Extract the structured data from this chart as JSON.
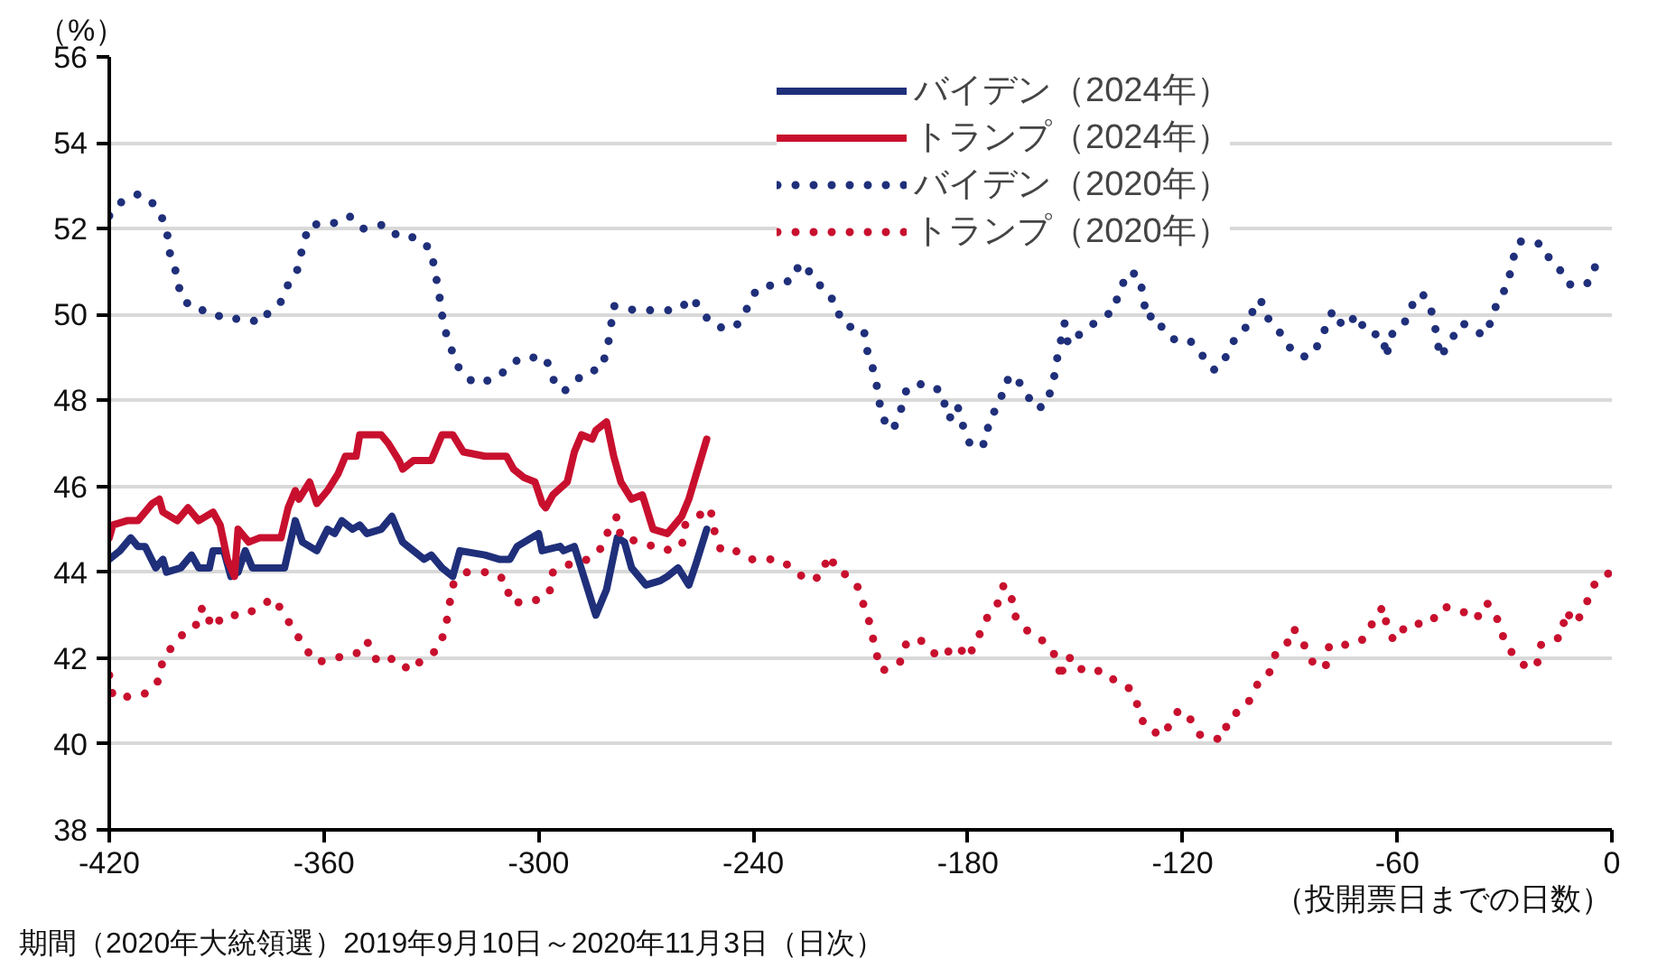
{
  "chart_data": {
    "type": "line",
    "ylabel": "（%）",
    "xlabel": "（投開票日までの日数）",
    "annotations": [
      "期間（2020年大統領選）2019年9月10日～2020年11月3日（日次）"
    ],
    "xlim": [
      -420,
      0
    ],
    "ylim": [
      38,
      56
    ],
    "xticks": [
      -420,
      -360,
      -300,
      -240,
      -180,
      -120,
      -60,
      0
    ],
    "yticks": [
      38,
      40,
      42,
      44,
      46,
      48,
      50,
      52,
      54,
      56
    ],
    "grid": "y",
    "legend": "top",
    "marker": "none",
    "series": [
      {
        "name": "バイデン（2024年）",
        "color": "#1f2f7a",
        "line_style": "solid",
        "x": [
          -420,
          -417,
          -414,
          -412,
          -410,
          -407,
          -405,
          -404,
          -400,
          -397,
          -395,
          -392,
          -391,
          -388,
          -386,
          -384,
          -382,
          -380,
          -371,
          -368,
          -366,
          -362,
          -359,
          -357,
          -355,
          -352,
          -350,
          -348,
          -344,
          -341,
          -338,
          -335,
          -332,
          -330,
          -327,
          -324,
          -322,
          -315,
          -311,
          -308,
          -306,
          -300,
          -299,
          -294,
          -293,
          -290,
          -284,
          -281,
          -278,
          -276,
          -274,
          -270,
          -266,
          -264,
          -261,
          -258,
          -256,
          -253
        ],
        "values": [
          44.3,
          44.5,
          44.8,
          44.6,
          44.6,
          44.1,
          44.3,
          44.0,
          44.1,
          44.4,
          44.1,
          44.1,
          44.5,
          44.5,
          43.9,
          44.0,
          44.5,
          44.1,
          44.1,
          45.2,
          44.7,
          44.5,
          45.0,
          44.9,
          45.2,
          45.0,
          45.1,
          44.9,
          45.0,
          45.3,
          44.7,
          44.5,
          44.3,
          44.4,
          44.1,
          43.9,
          44.5,
          44.4,
          44.3,
          44.3,
          44.6,
          44.9,
          44.5,
          44.6,
          44.5,
          44.6,
          43.0,
          43.6,
          44.8,
          44.7,
          44.1,
          43.7,
          43.8,
          43.9,
          44.1,
          43.7,
          44.2,
          45.0
        ]
      },
      {
        "name": "トランプ（2024年）",
        "color": "#c8102e",
        "line_style": "solid",
        "x": [
          -420,
          -419,
          -415,
          -412,
          -408,
          -406,
          -405,
          -401,
          -398,
          -395,
          -391,
          -389,
          -387,
          -385,
          -384,
          -381,
          -378,
          -372,
          -370,
          -368,
          -367,
          -364,
          -362,
          -359,
          -356,
          -354,
          -351,
          -350,
          -344,
          -342,
          -339,
          -338,
          -335,
          -330,
          -327,
          -324,
          -321,
          -315,
          -309,
          -307,
          -304,
          -301,
          -299,
          -298,
          -296,
          -292,
          -290,
          -288,
          -285,
          -284,
          -281,
          -279,
          -277,
          -274,
          -271,
          -268,
          -264,
          -260,
          -258,
          -253
        ],
        "values": [
          44.8,
          45.1,
          45.2,
          45.2,
          45.6,
          45.7,
          45.4,
          45.2,
          45.5,
          45.2,
          45.4,
          45.1,
          44.3,
          43.9,
          45.0,
          44.7,
          44.8,
          44.8,
          45.5,
          45.9,
          45.7,
          46.1,
          45.6,
          45.9,
          46.3,
          46.7,
          46.7,
          47.2,
          47.2,
          47.0,
          46.6,
          46.4,
          46.6,
          46.6,
          47.2,
          47.2,
          46.8,
          46.7,
          46.7,
          46.4,
          46.2,
          46.1,
          45.6,
          45.5,
          45.8,
          46.1,
          46.8,
          47.2,
          47.1,
          47.3,
          47.5,
          46.7,
          46.1,
          45.7,
          45.8,
          45.0,
          44.9,
          45.3,
          45.7,
          47.1
        ]
      },
      {
        "name": "バイデン（2020年）",
        "color": "#1f2f7a",
        "line_style": "dotted",
        "x": [
          -420,
          -417,
          -412,
          -409,
          -406,
          -404,
          -403,
          -401,
          -400,
          -396,
          -392,
          -388,
          -381,
          -378,
          -376,
          -372,
          -370,
          -367,
          -366,
          -364,
          -358,
          -353,
          -349,
          -343,
          -339,
          -334,
          -330,
          -329,
          -328,
          -327,
          -326,
          -324,
          -322,
          -318,
          -312,
          -308,
          -305,
          -298,
          -296,
          -293,
          -289,
          -286,
          -283,
          -281,
          -280,
          -279,
          -273,
          -267,
          -261,
          -257,
          -254,
          -250,
          -245,
          -242,
          -239,
          -234,
          -229,
          -227,
          -223,
          -220,
          -217,
          -216,
          -215,
          -212,
          -209,
          -208,
          -206,
          -205,
          -204,
          -201,
          -199,
          -197,
          -192,
          -187,
          -186,
          -185,
          -183,
          -181,
          -179,
          -175,
          -174,
          -171,
          -170,
          -167,
          -164,
          -161,
          -158,
          -156,
          -155,
          -154,
          -153,
          -152,
          -148,
          -143,
          -139,
          -138,
          -135,
          -132,
          -131,
          -130,
          -128,
          -125,
          -122,
          -118,
          -115,
          -111,
          -108,
          -105,
          -101,
          -100,
          -98,
          -96,
          -92,
          -89,
          -85,
          -82,
          -80,
          -78,
          -75,
          -71,
          -69,
          -64,
          -63,
          -62,
          -58,
          -56,
          -53,
          -50,
          -49,
          -48,
          -45,
          -42,
          -39,
          -36,
          -34,
          -32,
          -29,
          -28,
          -26,
          -22,
          -19,
          -17,
          -14,
          -12,
          -7,
          -5,
          -2
        ],
        "values": [
          52.3,
          52.6,
          52.8,
          52.7,
          52.4,
          52.0,
          51.4,
          50.9,
          50.4,
          50.1,
          50.1,
          49.9,
          49.9,
          49.8,
          50.0,
          50.3,
          50.7,
          51.1,
          51.6,
          52.1,
          52.1,
          52.3,
          52.0,
          52.1,
          51.8,
          51.8,
          51.5,
          51.0,
          50.6,
          50.0,
          49.6,
          49.1,
          48.7,
          48.4,
          48.5,
          48.8,
          49.0,
          49.0,
          48.5,
          48.2,
          48.5,
          48.7,
          48.7,
          49.1,
          49.6,
          50.2,
          50.1,
          50.1,
          50.1,
          50.4,
          50.0,
          49.7,
          49.7,
          50.1,
          50.6,
          50.7,
          50.8,
          51.2,
          50.9,
          50.5,
          50.3,
          50.0,
          50.0,
          49.6,
          49.6,
          49.1,
          48.6,
          48.1,
          47.6,
          47.3,
          47.7,
          48.3,
          48.4,
          48.2,
          47.6,
          47.6,
          47.9,
          47.3,
          46.9,
          47.0,
          47.6,
          47.9,
          48.4,
          48.6,
          48.2,
          47.8,
          47.9,
          48.5,
          49.0,
          49.4,
          49.8,
          49.3,
          49.6,
          49.9,
          50.1,
          50.5,
          51.0,
          50.9,
          50.4,
          49.9,
          50.0,
          49.6,
          49.4,
          49.4,
          49.1,
          48.7,
          49.0,
          49.5,
          49.8,
          50.3,
          50.3,
          49.9,
          49.5,
          49.1,
          49.0,
          49.3,
          49.7,
          50.1,
          49.7,
          50.0,
          49.6,
          49.5,
          49.0,
          49.5,
          49.8,
          50.2,
          50.5,
          50.0,
          49.5,
          49.0,
          49.4,
          49.8,
          49.7,
          49.5,
          49.8,
          50.3,
          50.7,
          51.2,
          51.7,
          51.7,
          51.6,
          51.2,
          51.0,
          50.7,
          50.7,
          51.1,
          51.1
        ]
      },
      {
        "name": "トランプ（2020年）",
        "color": "#c8102e",
        "line_style": "dotted",
        "x": [
          -420,
          -419,
          -413,
          -409,
          -406,
          -405,
          -401,
          -398,
          -395,
          -394,
          -391,
          -388,
          -382,
          -378,
          -374,
          -371,
          -368,
          -365,
          -362,
          -357,
          -351,
          -348,
          -345,
          -340,
          -336,
          -332,
          -328,
          -326,
          -325,
          -324,
          -320,
          -313,
          -309,
          -308,
          -302,
          -297,
          -296,
          -291,
          -286,
          -282,
          -280,
          -278,
          -277,
          -271,
          -265,
          -260,
          -259,
          -252,
          -251,
          -249,
          -245,
          -241,
          -238,
          -233,
          -229,
          -225,
          -221,
          -219,
          -216,
          -215,
          -211,
          -209,
          -207,
          -206,
          -204,
          -199,
          -197,
          -193,
          -188,
          -183,
          -180,
          -177,
          -175,
          -172,
          -170,
          -168,
          -167,
          -163,
          -159,
          -155,
          -154,
          -153,
          -150,
          -148,
          -142,
          -138,
          -135,
          -133,
          -131,
          -129,
          -125,
          -124,
          -121,
          -118,
          -115,
          -109,
          -107,
          -102,
          -99,
          -96,
          -94,
          -91,
          -89,
          -86,
          -83,
          -80,
          -79,
          -75,
          -70,
          -67,
          -64,
          -63,
          -61,
          -57,
          -54,
          -51,
          -47,
          -42,
          -38,
          -35,
          -32,
          -30,
          -27,
          -24,
          -21,
          -20,
          -14,
          -13,
          -10,
          -7,
          -5,
          -3,
          0
        ],
        "values": [
          41.6,
          41.1,
          41.1,
          41.2,
          41.5,
          42.0,
          42.4,
          42.7,
          42.8,
          43.2,
          42.7,
          43.0,
          43.0,
          43.2,
          43.4,
          43.0,
          42.6,
          42.2,
          41.9,
          42.0,
          42.1,
          42.4,
          41.9,
          42.0,
          41.7,
          42.0,
          42.2,
          42.7,
          43.2,
          43.7,
          44.0,
          44.0,
          43.8,
          43.3,
          43.3,
          43.5,
          44.0,
          44.2,
          44.3,
          44.6,
          45.1,
          45.3,
          44.8,
          44.7,
          44.5,
          44.6,
          45.1,
          45.5,
          45.0,
          44.5,
          44.5,
          44.3,
          44.3,
          44.3,
          44.1,
          43.8,
          43.9,
          44.4,
          44.0,
          44.0,
          43.7,
          43.2,
          42.7,
          42.2,
          41.7,
          41.9,
          42.4,
          42.4,
          42.0,
          42.3,
          42.0,
          42.5,
          42.9,
          43.2,
          43.7,
          43.5,
          43.0,
          42.6,
          42.4,
          42.0,
          41.5,
          42.0,
          42.0,
          41.7,
          41.7,
          41.4,
          41.3,
          41.0,
          40.5,
          40.3,
          40.2,
          40.4,
          40.8,
          40.6,
          40.2,
          40.1,
          40.6,
          40.9,
          41.4,
          41.6,
          42.1,
          42.3,
          42.7,
          42.3,
          41.8,
          41.8,
          42.3,
          42.3,
          42.4,
          42.8,
          43.2,
          42.8,
          42.4,
          42.8,
          42.8,
          42.8,
          43.2,
          43.1,
          42.9,
          43.3,
          42.9,
          42.4,
          42.0,
          41.8,
          41.8,
          42.3,
          42.5,
          43.1,
          42.8,
          43.3,
          43.7,
          43.9,
          44.0
        ]
      }
    ]
  }
}
